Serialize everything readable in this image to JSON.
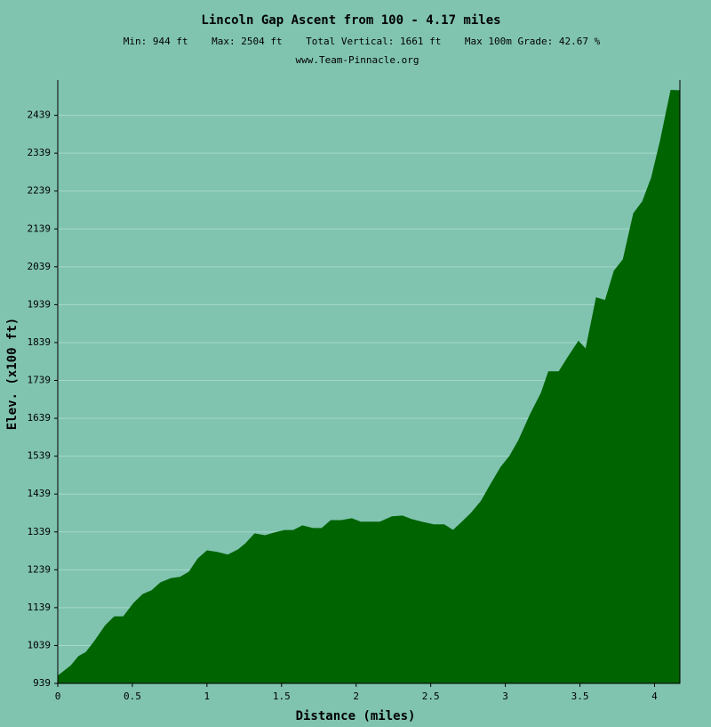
{
  "chart_data": {
    "type": "area",
    "title": "Lincoln Gap Ascent from 100 - 4.17 miles",
    "subtitle": "Min: 944 ft    Max: 2504 ft    Total Vertical: 1661 ft    Max 100m Grade: 42.67 %",
    "source": "www.Team-Pinnacle.org",
    "x_label": "Distance (miles)",
    "y_label": "Elev. (x100 ft)",
    "color": "#006400",
    "grid": true,
    "xlim": [
      0,
      4.17
    ],
    "ylim": [
      939,
      2532
    ],
    "xticks": [
      0,
      0.5,
      1,
      1.5,
      2,
      2.5,
      3,
      3.5,
      4
    ],
    "yticks": [
      939,
      1039,
      1139,
      1239,
      1339,
      1439,
      1539,
      1639,
      1739,
      1839,
      1939,
      2039,
      2139,
      2239,
      2339,
      2439
    ],
    "x": [
      0,
      0.09,
      0.14,
      0.19,
      0.25,
      0.32,
      0.38,
      0.44,
      0.51,
      0.57,
      0.63,
      0.69,
      0.76,
      0.82,
      0.88,
      0.94,
      1.0,
      1.07,
      1.14,
      1.21,
      1.26,
      1.32,
      1.39,
      1.45,
      1.52,
      1.58,
      1.64,
      1.71,
      1.77,
      1.83,
      1.9,
      1.97,
      2.03,
      2.1,
      2.16,
      2.24,
      2.31,
      2.37,
      2.44,
      2.52,
      2.59,
      2.65,
      2.71,
      2.77,
      2.84,
      2.9,
      2.97,
      3.03,
      3.09,
      3.17,
      3.24,
      3.29,
      3.36,
      3.42,
      3.49,
      3.54,
      3.61,
      3.67,
      3.73,
      3.79,
      3.86,
      3.92,
      3.98,
      4.04,
      4.11,
      4.17
    ],
    "values": [
      958,
      986,
      1010,
      1021,
      1052,
      1092,
      1115,
      1115,
      1151,
      1174,
      1184,
      1205,
      1216,
      1219,
      1233,
      1268,
      1289,
      1285,
      1278,
      1292,
      1308,
      1334,
      1329,
      1336,
      1343,
      1343,
      1355,
      1348,
      1348,
      1369,
      1369,
      1374,
      1365,
      1365,
      1365,
      1379,
      1381,
      1372,
      1365,
      1358,
      1358,
      1343,
      1365,
      1388,
      1421,
      1463,
      1510,
      1539,
      1581,
      1651,
      1705,
      1762,
      1762,
      1800,
      1842,
      1821,
      1957,
      1950,
      2028,
      2058,
      2180,
      2211,
      2274,
      2373,
      2505,
      2504
    ]
  }
}
